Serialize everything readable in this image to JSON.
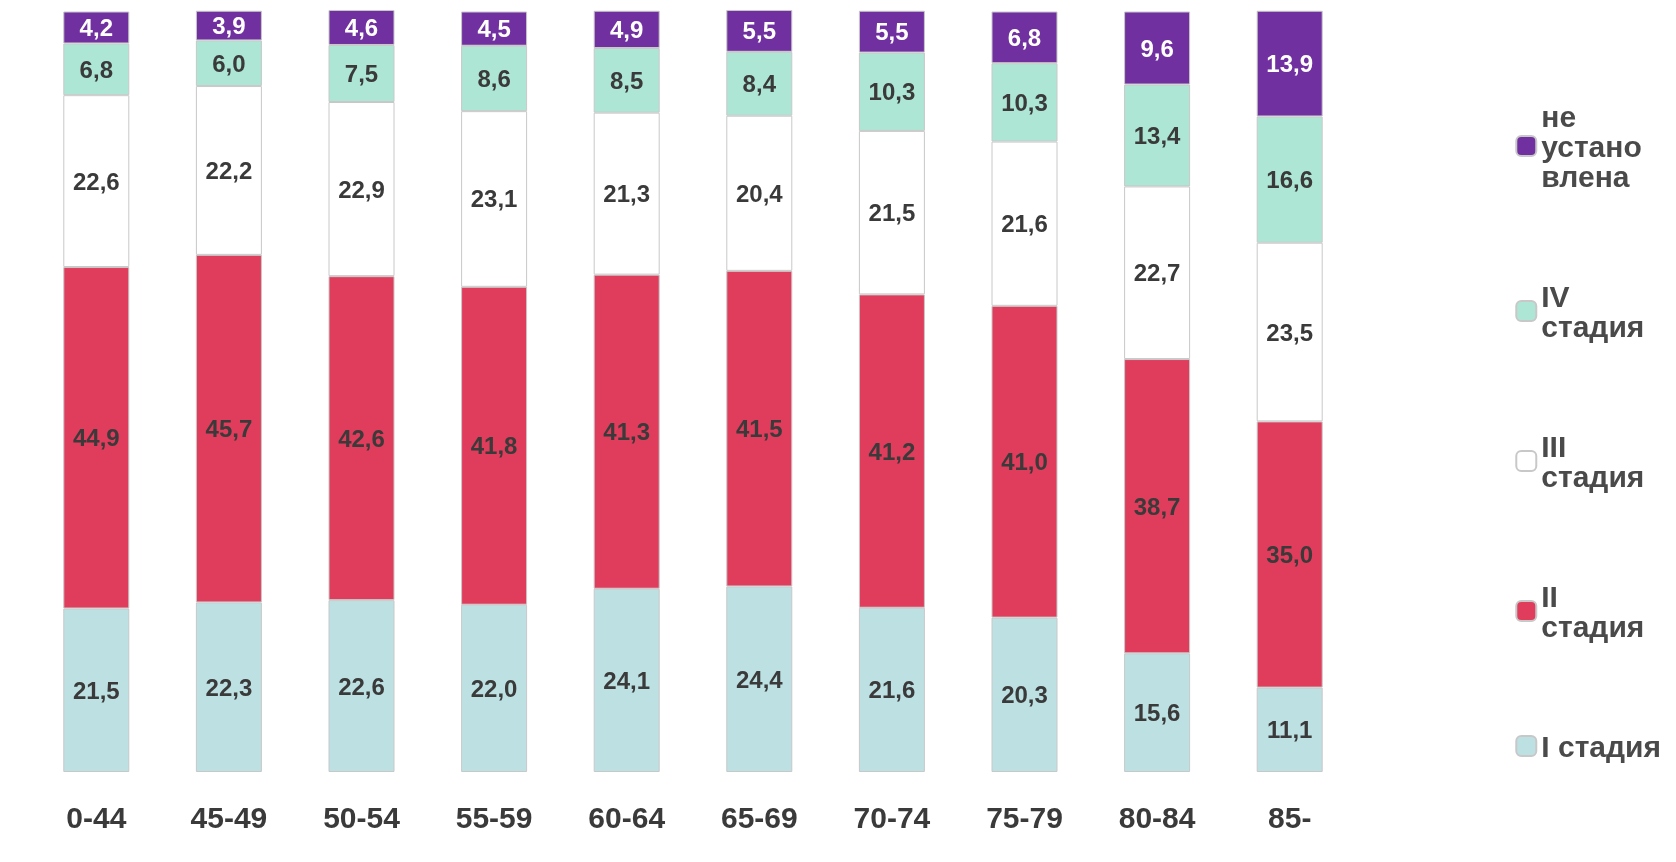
{
  "chart_data": {
    "type": "bar",
    "stacked": true,
    "legend": "right",
    "categories": [
      "0-44",
      "45-49",
      "50-54",
      "55-59",
      "60-64",
      "65-69",
      "70-74",
      "75-79",
      "80-84",
      "85-"
    ],
    "series": [
      {
        "name": "I стадия",
        "color": "#bde0e3",
        "values": [
          21.5,
          22.3,
          22.6,
          22.0,
          24.1,
          24.4,
          21.6,
          20.3,
          15.6,
          11.1
        ],
        "value_labels": [
          "21,5",
          "22,3",
          "22,6",
          "22,0",
          "24,1",
          "24,4",
          "21,6",
          "20,3",
          "15,6",
          "11,1"
        ]
      },
      {
        "name": "II стадия",
        "color": "#e03c5c",
        "values": [
          44.9,
          45.7,
          42.6,
          41.8,
          41.3,
          41.5,
          41.2,
          41.0,
          38.7,
          35.0
        ],
        "value_labels": [
          "44,9",
          "45,7",
          "42,6",
          "41,8",
          "41,3",
          "41,5",
          "41,2",
          "41,0",
          "38,7",
          "35,0"
        ]
      },
      {
        "name": "III стадия",
        "color": "#ffffff",
        "values": [
          22.6,
          22.2,
          22.9,
          23.1,
          21.3,
          20.4,
          21.5,
          21.6,
          22.7,
          23.5
        ],
        "value_labels": [
          "22,6",
          "22,2",
          "22,9",
          "23,1",
          "21,3",
          "20,4",
          "21,5",
          "21,6",
          "22,7",
          "23,5"
        ]
      },
      {
        "name": "IV стадия",
        "color": "#aee6d6",
        "values": [
          6.8,
          6.0,
          7.5,
          8.6,
          8.5,
          8.4,
          10.3,
          10.3,
          13.4,
          16.6
        ],
        "value_labels": [
          "6,8",
          "6,0",
          "7,5",
          "8,6",
          "8,5",
          "8,4",
          "10,3",
          "10,3",
          "13,4",
          "16,6"
        ]
      },
      {
        "name": "не установлена",
        "color": "#7030a0",
        "values": [
          4.2,
          3.9,
          4.6,
          4.5,
          4.9,
          5.5,
          5.5,
          6.8,
          9.6,
          13.9
        ],
        "value_labels": [
          "4,2",
          "3,9",
          "4,6",
          "4,5",
          "4,9",
          "5,5",
          "5,5",
          "6,8",
          "9,6",
          "13,9"
        ]
      }
    ]
  }
}
